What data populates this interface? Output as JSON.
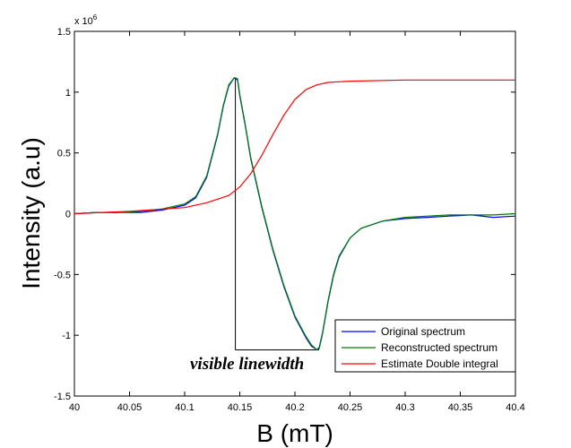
{
  "chart_data": {
    "type": "line",
    "title": "",
    "xlabel": "B (mT)",
    "ylabel": "Intensity (a.u)",
    "y_multiplier": "x 10",
    "y_multiplier_exp": "6",
    "xlim": [
      40,
      40.4
    ],
    "ylim": [
      -1.5,
      1.5
    ],
    "x_ticks": [
      40,
      40.05,
      40.1,
      40.15,
      40.2,
      40.25,
      40.3,
      40.35,
      40.4
    ],
    "x_tick_labels": [
      "40",
      "40.05",
      "40.1",
      "40.15",
      "40.2",
      "40.25",
      "40.3",
      "40.35",
      "40.4"
    ],
    "y_ticks": [
      -1.5,
      -1,
      -0.5,
      0,
      0.5,
      1,
      1.5
    ],
    "y_tick_labels": [
      "-1.5",
      "-1",
      "-0.5",
      "0",
      "0.5",
      "1",
      "1.5"
    ],
    "grid": false,
    "legend_position": "bottom-right",
    "series": [
      {
        "name": "Original spectrum",
        "color": "#0000ff",
        "x": [
          40,
          40.02,
          40.04,
          40.06,
          40.08,
          40.1,
          40.11,
          40.12,
          40.13,
          40.135,
          40.14,
          40.145,
          40.148,
          40.15,
          40.155,
          40.16,
          40.17,
          40.18,
          40.19,
          40.2,
          40.21,
          40.215,
          40.22,
          40.222,
          40.225,
          40.23,
          40.235,
          40.24,
          40.25,
          40.26,
          40.28,
          40.3,
          40.32,
          40.34,
          40.36,
          40.38,
          40.4
        ],
        "y": [
          0,
          0.01,
          0.01,
          0.01,
          0.03,
          0.07,
          0.13,
          0.3,
          0.65,
          0.88,
          1.05,
          1.12,
          1.1,
          0.97,
          0.72,
          0.45,
          0.05,
          -0.3,
          -0.6,
          -0.85,
          -1.02,
          -1.09,
          -1.12,
          -1.1,
          -0.98,
          -0.72,
          -0.5,
          -0.35,
          -0.2,
          -0.12,
          -0.06,
          -0.04,
          -0.03,
          -0.02,
          -0.01,
          -0.03,
          -0.02
        ]
      },
      {
        "name": "Reconstructed spectrum",
        "color": "#007f00",
        "x": [
          40,
          40.02,
          40.04,
          40.06,
          40.08,
          40.1,
          40.11,
          40.12,
          40.13,
          40.135,
          40.14,
          40.145,
          40.148,
          40.15,
          40.155,
          40.16,
          40.17,
          40.18,
          40.19,
          40.2,
          40.21,
          40.215,
          40.22,
          40.222,
          40.225,
          40.23,
          40.235,
          40.24,
          40.25,
          40.26,
          40.28,
          40.3,
          40.32,
          40.34,
          40.36,
          40.38,
          40.4
        ],
        "y": [
          0,
          0.01,
          0.01,
          0.02,
          0.04,
          0.08,
          0.14,
          0.31,
          0.66,
          0.89,
          1.06,
          1.12,
          1.11,
          0.98,
          0.73,
          0.46,
          0.06,
          -0.29,
          -0.59,
          -0.84,
          -1.01,
          -1.08,
          -1.12,
          -1.11,
          -0.99,
          -0.73,
          -0.51,
          -0.36,
          -0.2,
          -0.12,
          -0.06,
          -0.03,
          -0.02,
          -0.01,
          -0.01,
          -0.01,
          0
        ]
      },
      {
        "name": "Estimate Double integral",
        "color": "#ff0000",
        "x": [
          40,
          40.05,
          40.1,
          40.12,
          40.14,
          40.15,
          40.16,
          40.17,
          40.18,
          40.19,
          40.2,
          40.21,
          40.22,
          40.23,
          40.25,
          40.3,
          40.35,
          40.4
        ],
        "y": [
          0,
          0.02,
          0.05,
          0.09,
          0.15,
          0.22,
          0.33,
          0.48,
          0.65,
          0.81,
          0.94,
          1.02,
          1.06,
          1.08,
          1.09,
          1.1,
          1.1,
          1.1
        ]
      }
    ],
    "annotations": [
      {
        "text": "visible linewidth",
        "x": 40.17,
        "y": -1.25
      }
    ],
    "linewidth_bracket": {
      "x1": 40.146,
      "x2": 40.222,
      "y_top": 1.12,
      "y_bottom": -1.12
    }
  }
}
